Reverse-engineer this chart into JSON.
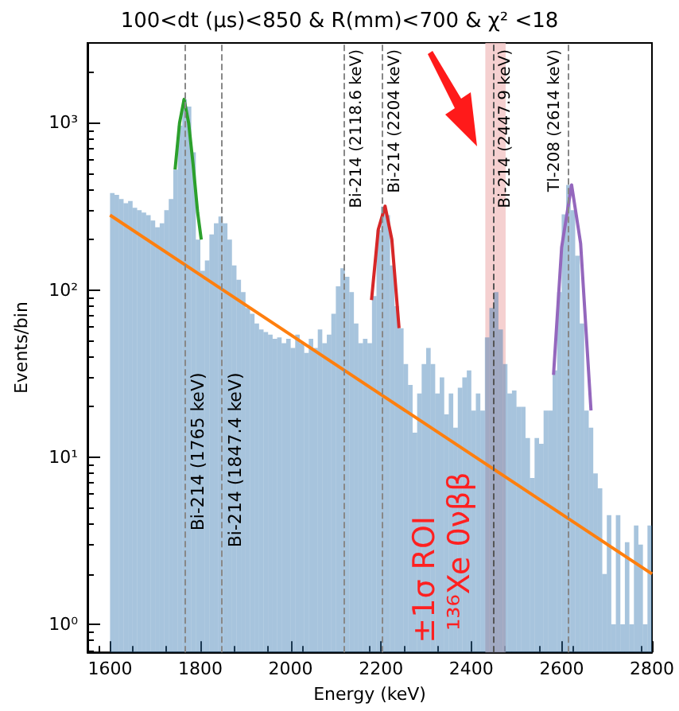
{
  "chart_data": {
    "type": "histogram",
    "title": "100<dt (μs)<850 & R(mm)<700 & χ² <18",
    "xlabel": "Energy (keV)",
    "ylabel": "Events/bin",
    "bins": [
      1600,
      1610,
      1620,
      1630,
      1640,
      1650,
      1660,
      1670,
      1680,
      1690,
      1700,
      1710,
      1720,
      1730,
      1740,
      1750,
      1760,
      1770,
      1780,
      1790,
      1800,
      1810,
      1820,
      1830,
      1840,
      1850,
      1860,
      1870,
      1880,
      1890,
      1900,
      1910,
      1920,
      1930,
      1940,
      1950,
      1960,
      1970,
      1980,
      1990,
      2000,
      2010,
      2020,
      2030,
      2040,
      2050,
      2060,
      2070,
      2080,
      2090,
      2100,
      2110,
      2120,
      2130,
      2140,
      2150,
      2160,
      2170,
      2180,
      2190,
      2200,
      2210,
      2220,
      2230,
      2240,
      2250,
      2260,
      2270,
      2280,
      2290,
      2300,
      2310,
      2320,
      2330,
      2340,
      2350,
      2360,
      2370,
      2380,
      2390,
      2400,
      2410,
      2420,
      2430,
      2440,
      2450,
      2460,
      2470,
      2480,
      2490,
      2500,
      2510,
      2520,
      2530,
      2540,
      2550,
      2560,
      2570,
      2580,
      2590,
      2600,
      2610,
      2620,
      2630,
      2640,
      2650,
      2660,
      2670,
      2680,
      2690,
      2700,
      2710,
      2720,
      2730,
      2740,
      2750,
      2760,
      2770,
      2780,
      2790,
      2800
    ],
    "values": [
      380,
      370,
      350,
      330,
      340,
      310,
      300,
      290,
      280,
      260,
      237,
      250,
      300,
      350,
      525,
      960,
      1380,
      1250,
      665,
      200,
      130,
      150,
      215,
      250,
      275,
      250,
      200,
      140,
      115,
      97,
      78,
      72,
      63,
      58,
      56,
      54,
      51,
      52,
      48,
      51,
      45,
      54,
      48,
      42,
      51,
      45,
      58,
      48,
      54,
      72,
      105,
      135,
      120,
      97,
      63,
      48,
      51,
      48,
      92,
      228,
      315,
      280,
      140,
      80,
      59,
      36,
      27,
      14,
      24,
      36,
      45,
      36,
      24,
      30,
      18,
      24,
      15,
      26,
      30,
      33,
      19,
      24,
      19,
      52,
      78,
      97,
      58,
      36,
      24,
      25,
      20,
      20,
      13,
      7.5,
      13,
      12,
      19,
      19,
      33,
      97,
      283,
      425,
      300,
      160,
      63,
      19,
      15,
      8,
      6.5,
      2,
      4.5,
      1,
      4.5,
      1,
      3.1,
      1,
      3.9,
      3,
      1,
      3.9
    ],
    "color": "#3b7db4",
    "series": [
      {
        "type": "line",
        "x": [
          1600,
          2800
        ],
        "values": [
          280,
          2
        ],
        "color": "#ff7f0e"
      },
      {
        "type": "line",
        "x": [
          1744,
          1754,
          1764,
          1774,
          1784,
          1794,
          1802
        ],
        "values": [
          525,
          1000,
          1380,
          1000,
          560,
          290,
          200
        ],
        "color": "#2ca02c"
      },
      {
        "type": "line",
        "x": [
          2179,
          2194,
          2209,
          2224,
          2240
        ],
        "values": [
          87,
          230,
          317,
          200,
          59
        ],
        "color": "#d62728"
      },
      {
        "type": "line",
        "x": [
          2582,
          2600,
          2622,
          2642,
          2665
        ],
        "values": [
          31,
          180,
          425,
          190,
          19
        ],
        "color": "#9467bd"
      }
    ],
    "ref_lines": [
      {
        "axis": "x",
        "value": 1765,
        "label": "Bi-214 (1765 keV)",
        "color": "#888888",
        "line_style": "dashed"
      },
      {
        "axis": "x",
        "value": 1847.4,
        "label": "Bi-214 (1847.4 keV)",
        "color": "#888888",
        "line_style": "dashed"
      },
      {
        "axis": "x",
        "value": 2118.6,
        "label": "Bi-214 (2118.6 keV)",
        "color": "#888888",
        "line_style": "dashed"
      },
      {
        "axis": "x",
        "value": 2204,
        "label": "Bi-214 (2204 keV)",
        "color": "#888888",
        "line_style": "dashed"
      },
      {
        "axis": "x",
        "value": 2447.9,
        "label": "Bi-214 (2447.9 keV)",
        "color": "#555555",
        "line_style": "dashed"
      },
      {
        "axis": "x",
        "value": 2614,
        "label": "Tl-208 (2614 keV)",
        "color": "#888888",
        "line_style": "dashed"
      }
    ],
    "bands": [
      {
        "axis": "x",
        "from": 2431,
        "to": 2476,
        "color": "#f2c4c4"
      }
    ],
    "annotations": [
      "±1σ ROI",
      "¹³⁶Xe 0νββ"
    ],
    "log": "y",
    "xlim": [
      1550,
      2800
    ],
    "ylim": [
      0.68,
      3000
    ],
    "xticks": [
      1600,
      1800,
      2000,
      2200,
      2400,
      2600,
      2800
    ],
    "yticks": [
      {
        "value": 1,
        "label": "10⁰"
      },
      {
        "value": 10,
        "label": "10¹"
      },
      {
        "value": 100,
        "label": "10²"
      },
      {
        "value": 1000,
        "label": "10³"
      }
    ],
    "grid": false
  }
}
